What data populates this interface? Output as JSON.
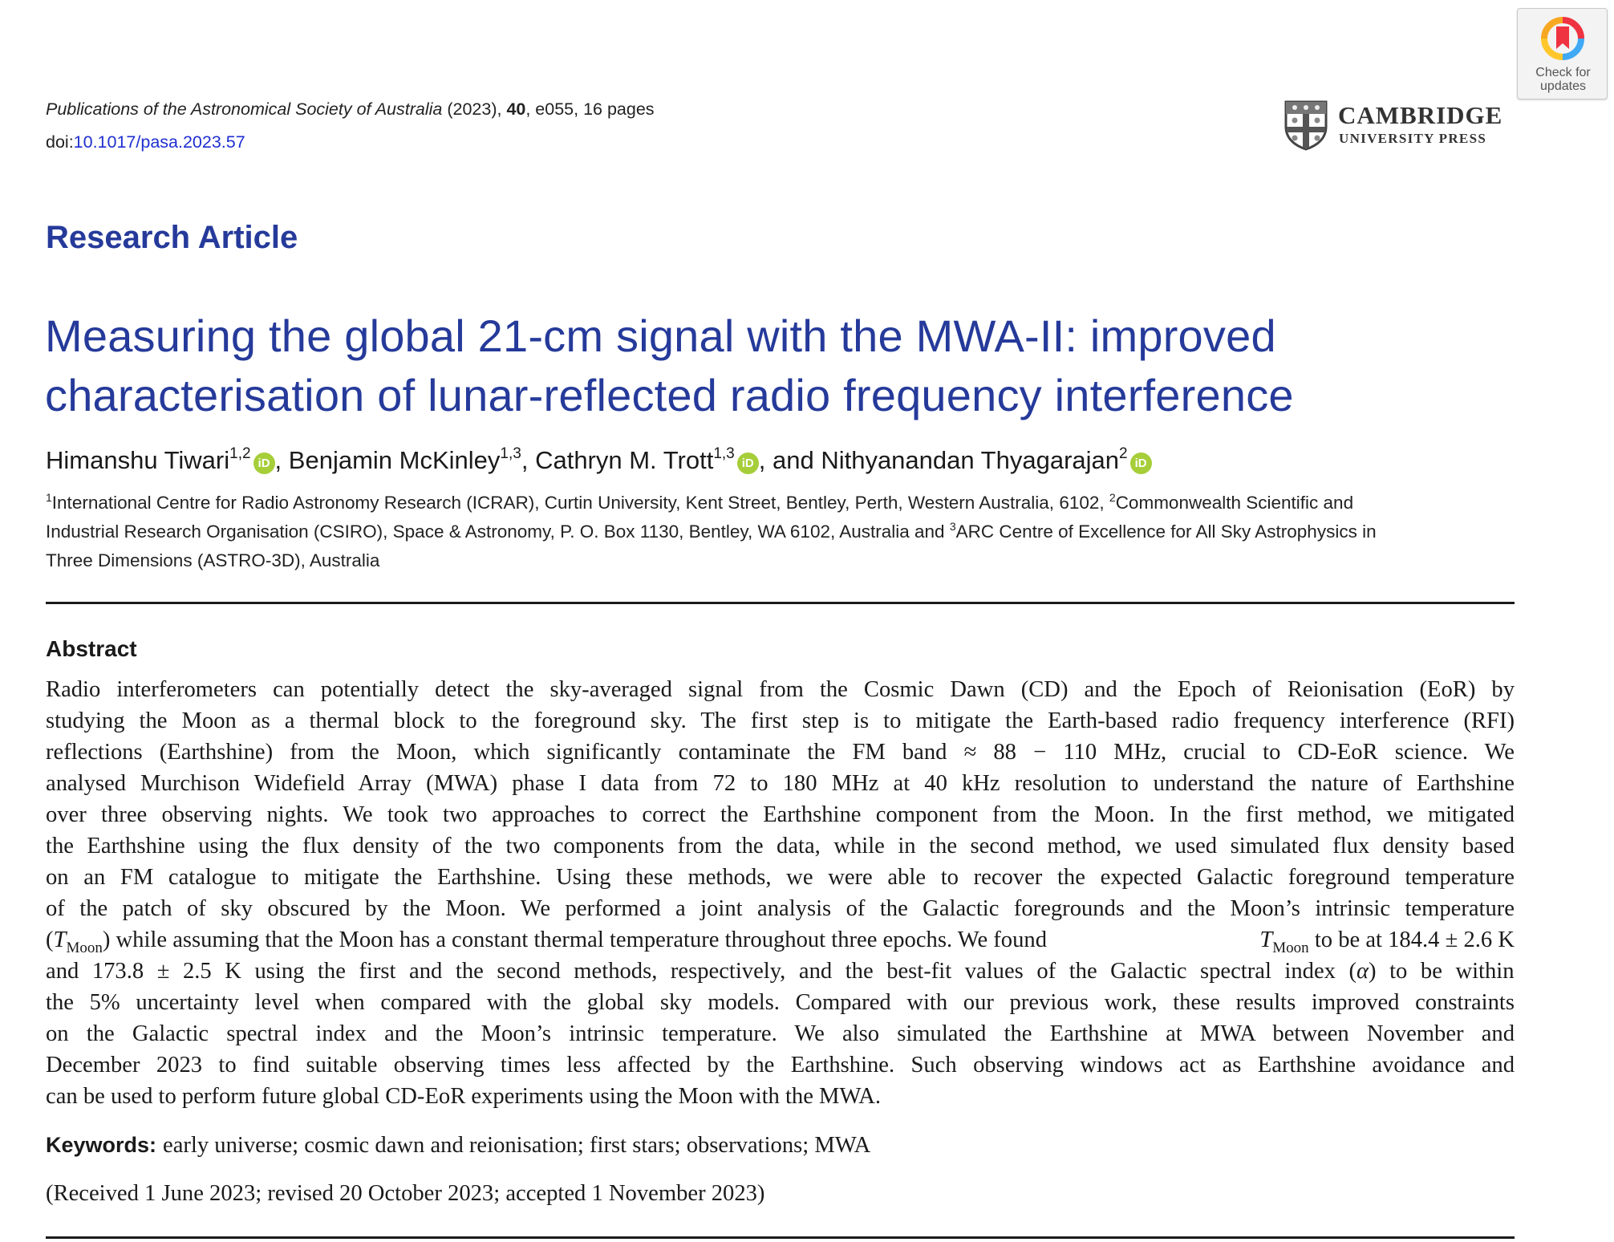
{
  "header": {
    "journal_name": "Publications of the Astronomical Society of Australia",
    "year": "(2023),",
    "volume": "40",
    "article_id": ", e055,  16 pages",
    "doi_label": "doi:",
    "doi_value": "10.1017/pasa.2023.57"
  },
  "crossmark": {
    "label": "Check for\nupdates",
    "icon": "crossmark-icon"
  },
  "publisher": {
    "name": "CAMBRIDGE",
    "subtitle": "UNIVERSITY PRESS",
    "icon": "cambridge-shield-icon"
  },
  "article": {
    "type": "Research Article",
    "title_line_1": "Measuring the global 21-cm signal with the MWA-II: improved",
    "title_line_2": "characterisation of lunar-reflected radio frequency interference"
  },
  "authors": [
    {
      "name": "Himanshu Tiwari",
      "affil": "1,2",
      "orcid": true
    },
    {
      "name": "Benjamin McKinley",
      "affil": "1,3",
      "orcid": false
    },
    {
      "name": "Cathryn M. Trott",
      "affil": "1,3",
      "orcid": true
    },
    {
      "name": "Nithyanandan Thyagarajan",
      "affil": "2",
      "orcid": true
    }
  ],
  "author_separators": {
    "comma": ",",
    "and": " and "
  },
  "orcid_badge": "iD",
  "affiliations": {
    "m1": "1",
    "a1": "International Centre for Radio Astronomy Research (ICRAR), Curtin University, Kent Street, Bentley, Perth, Western Australia, 6102,",
    "m2": "2",
    "a2_part1": "Commonwealth Scientific and",
    "a2_part2": "Industrial Research Organisation (CSIRO), Space & Astronomy, P. O. Box 1130, Bentley, WA 6102, Australia and",
    "m3": "3",
    "a3_part1": "ARC Centre of Excellence for All Sky Astrophysics in",
    "a3_part2": "Three Dimensions (ASTRO-3D), Australia"
  },
  "abstract": {
    "heading": "Abstract",
    "lines": [
      "Radio interferometers can potentially detect the sky-averaged signal from the Cosmic Dawn (CD) and the Epoch of Reionisation (EoR) by",
      "studying the Moon as a thermal block to the foreground sky. The first step is to mitigate the Earth-based radio frequency interference (RFI)",
      "reflections (Earthshine) from the Moon, which significantly contaminate the FM band ≈ 88 − 110 MHz, crucial to CD-EoR science. We",
      "analysed Murchison Widefield Array (MWA) phase I data from 72 to 180 MHz at 40 kHz resolution to understand the nature of Earthshine",
      "over three observing nights. We took two approaches to correct the Earthshine component from the Moon. In the first method, we mitigated",
      "the Earthshine using the flux density of the two components from the data, while in the second method, we used simulated flux density based",
      "on an FM catalogue to mitigate the Earthshine. Using these methods, we were able to recover the expected Galactic foreground temperature",
      "of the patch of sky obscured by the Moon. We performed a joint analysis of the Galactic foregrounds and the Moon’s intrinsic temperature"
    ],
    "line9_open": "(",
    "t_symbol": "T",
    "t_sub": "Moon",
    "line9_mid": ") while assuming that the Moon has a constant thermal temperature throughout three epochs. We found",
    "line9_end": "to be at 184.4 ± 2.6 K",
    "line10_start": "and 173.8 ± 2.5 K using the first and the second methods, respectively, and the best-fit values of the Galactic spectral index (",
    "alpha": "α",
    "line10_end": ") to be within",
    "lines_tail": [
      "the 5% uncertainty level when compared with the global sky models. Compared with our previous work, these results improved constraints",
      "on the Galactic spectral index and the Moon’s intrinsic temperature. We also simulated the Earthshine at MWA between November and",
      "December 2023 to find suitable observing times less affected by the Earthshine. Such observing windows act as Earthshine avoidance and",
      "can be used to perform future global CD-EoR experiments using the Moon with the MWA."
    ]
  },
  "keywords": {
    "label": "Keywords:",
    "text": "early universe; cosmic dawn and reionisation; first stars; observations; MWA"
  },
  "history": "(Received 1 June 2023; revised 20 October 2023; accepted 1 November 2023)"
}
